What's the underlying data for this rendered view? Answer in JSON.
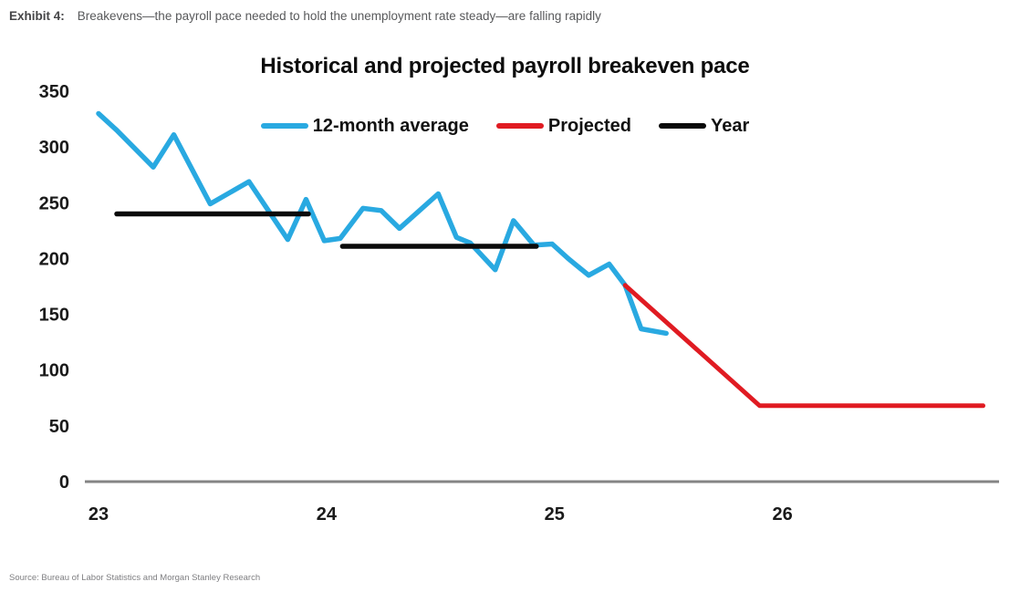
{
  "header": {
    "exhibit_label": "Exhibit 4:",
    "description": "Breakevens—the payroll pace needed to hold the unemployment rate steady—are falling rapidly"
  },
  "chart_data": {
    "type": "line",
    "title": "Historical and projected payroll breakeven pace",
    "xlabel": "",
    "ylabel": "",
    "xlim": [
      22.94,
      26.95
    ],
    "ylim": [
      0,
      350
    ],
    "x_ticks": [
      23,
      24,
      25,
      26
    ],
    "y_ticks": [
      0,
      50,
      100,
      150,
      200,
      250,
      300,
      350
    ],
    "grid": false,
    "legend_position": "top-center",
    "axis_line_color": "#848484",
    "tick_label_color": "#1a1a1a",
    "series": [
      {
        "name": "12-month average",
        "color": "#29A9E1",
        "stroke_width": 5.5,
        "segments": [
          [
            [
              23.0,
              330
            ],
            [
              23.08,
              315
            ],
            [
              23.24,
              282
            ],
            [
              23.33,
              311
            ],
            [
              23.49,
              249
            ],
            [
              23.66,
              269
            ],
            [
              23.83,
              217
            ],
            [
              23.91,
              253
            ],
            [
              23.99,
              216
            ],
            [
              24.06,
              218
            ],
            [
              24.16,
              245
            ],
            [
              24.24,
              243
            ],
            [
              24.32,
              227
            ],
            [
              24.49,
              258
            ],
            [
              24.57,
              219
            ],
            [
              24.63,
              214
            ],
            [
              24.74,
              190
            ],
            [
              24.82,
              234
            ],
            [
              24.91,
              212
            ],
            [
              24.99,
              213
            ],
            [
              25.06,
              200
            ],
            [
              25.15,
              185
            ],
            [
              25.24,
              195
            ],
            [
              25.31,
              176
            ],
            [
              25.38,
              137
            ],
            [
              25.49,
              133
            ]
          ]
        ]
      },
      {
        "name": "Projected",
        "color": "#E01B22",
        "stroke_width": 5,
        "segments": [
          [
            [
              25.31,
              176
            ],
            [
              25.9,
              68
            ],
            [
              26.88,
              68
            ]
          ]
        ]
      },
      {
        "name": "Year",
        "color": "#0a0a0a",
        "stroke_width": 5.5,
        "segments": [
          [
            [
              23.08,
              240
            ],
            [
              23.92,
              240
            ]
          ],
          [
            [
              24.07,
              211
            ],
            [
              24.92,
              211
            ]
          ]
        ]
      }
    ]
  },
  "source": "Source: Bureau of Labor Statistics and Morgan Stanley Research"
}
